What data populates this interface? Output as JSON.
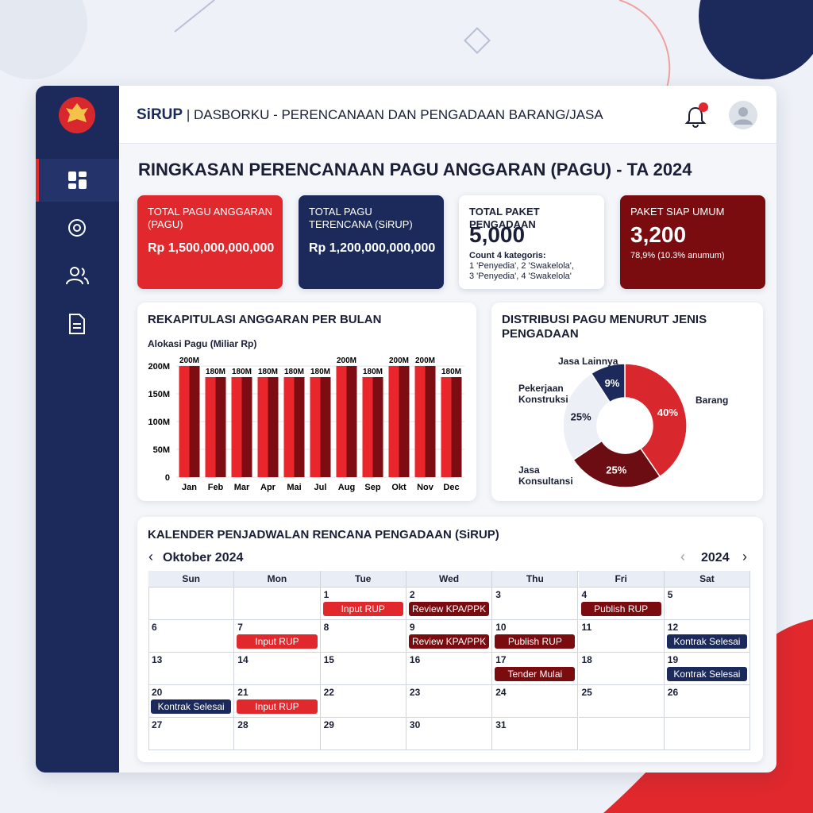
{
  "header": {
    "brand": "SiRUP",
    "title": "| DASBORKU - PERENCANAAN DAN PENGADAAN BARANG/JASA"
  },
  "page_title": "RINGKASAN PERENCANAAN PAGU ANGGARAN (PAGU) - TA 2024",
  "cards": [
    {
      "title": "TOTAL PAGU ANGGARAN (PAGU)",
      "value": "Rp 1,500,000,000,000",
      "color": "#e0282d",
      "notes": []
    },
    {
      "title": "TOTAL PAGU TERENCANA (SiRUP)",
      "value": "Rp 1,200,000,000,000",
      "color": "#1b2a5a",
      "notes": []
    },
    {
      "title": "TOTAL PAKET PENGADAAN",
      "value": "5,000",
      "color": "#ffffff",
      "notes": [
        "Count 4 kategoris:",
        "1 'Penyedia', 2 'Swakelola',",
        "3 'Penyedia', 4 'Swakelola'"
      ]
    },
    {
      "title": "PAKET SIAP UMUM",
      "value": "3,200",
      "color": "#7a0c10",
      "notes": [
        "78,9% (10.3% anumum)"
      ]
    }
  ],
  "chart_data": [
    {
      "type": "bar",
      "title": "REKAPITULASI ANGGARAN PER BULAN",
      "y_label": "Alokasi Pagu (Miliar Rp)",
      "categories": [
        "Jan",
        "Feb",
        "Mar",
        "Apr",
        "Mai",
        "Jul",
        "Aug",
        "Sep",
        "Okt",
        "Nov",
        "Dec"
      ],
      "values": [
        200,
        180,
        180,
        180,
        180,
        180,
        200,
        180,
        200,
        200,
        180
      ],
      "value_labels": [
        "200M",
        "180M",
        "180M",
        "180M",
        "180M",
        "180M",
        "200M",
        "180M",
        "200M",
        "200M",
        "180M"
      ],
      "colors": [
        "#e8262c",
        "#7d0d12"
      ],
      "ylim": [
        0,
        200
      ],
      "yticks": [
        0,
        {
          "value": 50,
          "label": "50M"
        },
        {
          "value": 100,
          "label": "100M"
        },
        {
          "value": 150,
          "label": "150M"
        },
        {
          "value": 200,
          "label": "200M"
        }
      ],
      "grid": true
    },
    {
      "type": "pie",
      "title": "DISTRIBUSI PAGU MENURUT JENIS PENGADAAN",
      "categories": [
        "Barang",
        "Jasa Konsultansi",
        "Pekerjaan Konstruksi",
        "Jasa Lainnya"
      ],
      "values": [
        40,
        25,
        25,
        9
      ],
      "value_labels": [
        "40%",
        "25%",
        "25%",
        "9%"
      ],
      "colors": [
        "#d8282d",
        "#6b0d12",
        "#eceff6",
        "#1b2a5a"
      ],
      "donut": true
    }
  ],
  "calendar": {
    "title": "KALENDER PENJADWALAN RENCANA PENGADAAN (SiRUP)",
    "month": "Oktober 2024",
    "year": "2024",
    "weekdays": [
      "Sun",
      "Mon",
      "Tue",
      "Wed",
      "Thu",
      "Fri",
      "Sat"
    ],
    "weeks": [
      [
        null,
        null,
        {
          "day": 1,
          "event": "Input RUP",
          "color": "#e0282d"
        },
        {
          "day": 2,
          "event": "Review KPA/PPK",
          "color": "#7a0c10"
        },
        {
          "day": 3
        },
        {
          "day": 4,
          "event": "Publish RUP",
          "color": "#7a0c10"
        },
        {
          "day": 5
        }
      ],
      [
        {
          "day": 6
        },
        {
          "day": 7,
          "event": "Input RUP",
          "color": "#e0282d"
        },
        {
          "day": 8
        },
        {
          "day": 9,
          "event": "Review KPA/PPK",
          "color": "#7a0c10"
        },
        {
          "day": 10,
          "event": "Publish RUP",
          "color": "#7a0c10"
        },
        {
          "day": 11
        },
        {
          "day": 12,
          "event": "Kontrak Selesai",
          "color": "#1b2a5a"
        }
      ],
      [
        {
          "day": 13
        },
        {
          "day": 14
        },
        {
          "day": 15
        },
        {
          "day": 16
        },
        {
          "day": 17,
          "event": "Tender Mulai",
          "color": "#7a0c10"
        },
        {
          "day": 18
        },
        {
          "day": 19,
          "event": "Kontrak Selesai",
          "color": "#1b2a5a"
        }
      ],
      [
        {
          "day": 20,
          "event": "Kontrak Selesai",
          "color": "#1b2a5a"
        },
        {
          "day": 21,
          "event": "Input RUP",
          "color": "#e0282d"
        },
        {
          "day": 22
        },
        {
          "day": 23
        },
        {
          "day": 24
        },
        {
          "day": 25
        },
        {
          "day": 26
        }
      ],
      [
        {
          "day": 27
        },
        {
          "day": 28
        },
        {
          "day": 29
        },
        {
          "day": 30
        },
        {
          "day": 31
        },
        null,
        null
      ]
    ]
  }
}
